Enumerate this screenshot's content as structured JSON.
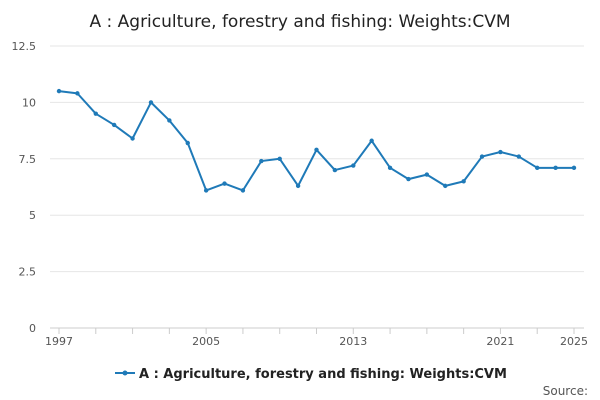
{
  "chart_data": {
    "type": "line",
    "title": "A : Agriculture, forestry and fishing: Weights:CVM",
    "xlabel": "",
    "ylabel": "",
    "x": [
      1997,
      1998,
      1999,
      2000,
      2001,
      2002,
      2003,
      2004,
      2005,
      2006,
      2007,
      2008,
      2009,
      2010,
      2011,
      2012,
      2013,
      2014,
      2015,
      2016,
      2017,
      2018,
      2019,
      2020,
      2021,
      2022,
      2023,
      2024,
      2025
    ],
    "series": [
      {
        "name": "A : Agriculture, forestry and fishing: Weights:CVM",
        "color": "#1f7ab8",
        "values": [
          10.5,
          10.4,
          9.5,
          9.0,
          8.4,
          10.0,
          9.2,
          8.2,
          6.1,
          6.4,
          6.1,
          7.4,
          7.5,
          6.3,
          7.9,
          7.0,
          7.2,
          8.3,
          7.1,
          6.6,
          6.8,
          6.3,
          6.5,
          7.6,
          7.8,
          7.6,
          7.1,
          7.1,
          7.1
        ]
      }
    ],
    "xlim": [
      1997,
      2025
    ],
    "ylim": [
      0,
      12.5
    ],
    "yticks": [
      0,
      2.5,
      5,
      7.5,
      10,
      12.5
    ],
    "ytick_labels": [
      "0",
      "2.5",
      "5",
      "7.5",
      "10",
      "12.5"
    ],
    "xticks": [
      1997,
      2005,
      2013,
      2021,
      2025
    ],
    "xtick_labels": [
      "1997",
      "2005",
      "2013",
      "2021",
      "2025"
    ],
    "grid": "horizontal",
    "legend_position": "bottom"
  },
  "source_label": "Source:"
}
